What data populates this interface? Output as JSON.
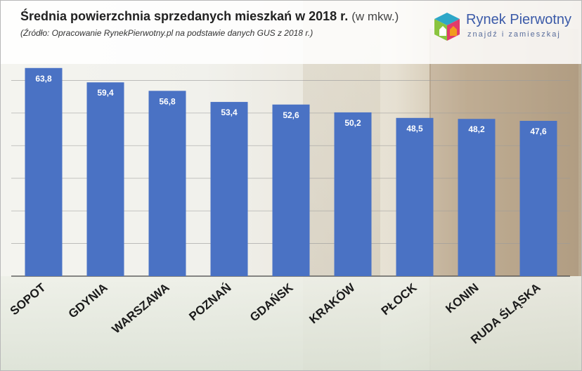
{
  "header": {
    "title_main": "Średnia powierzchnia sprzedanych mieszkań w 2018 r.",
    "title_unit": "(w mkw.)",
    "source": "(Źródło: Opracowanie RynekPierwotny.pl na podstawie danych GUS z 2018 r.)"
  },
  "logo": {
    "name": "Rynek Pierwotny",
    "tagline": "znajdź i zamieszkaj",
    "icon": "house-cube-icon",
    "colors": [
      "#2ea7c8",
      "#8ac43f",
      "#e23b6b",
      "#f29b1d"
    ]
  },
  "chart_data": {
    "type": "bar",
    "title": "Średnia powierzchnia sprzedanych mieszkań w 2018 r. (w mkw.)",
    "categories": [
      "SOPOT",
      "GDYNIA",
      "WARSZAWA",
      "POZNAŃ",
      "GDAŃSK",
      "KRAKÓW",
      "PŁOCK",
      "KONIN",
      "RUDA ŚLĄSKA"
    ],
    "values": [
      63.8,
      59.4,
      56.8,
      53.4,
      52.6,
      50.2,
      48.5,
      48.2,
      47.6
    ],
    "data_labels": [
      "63,8",
      "59,4",
      "56,8",
      "53,4",
      "52,6",
      "50,2",
      "48,5",
      "48,2",
      "47,6"
    ],
    "ylim": [
      0,
      70
    ],
    "grid": true,
    "bar_color": "#4a72c4"
  }
}
